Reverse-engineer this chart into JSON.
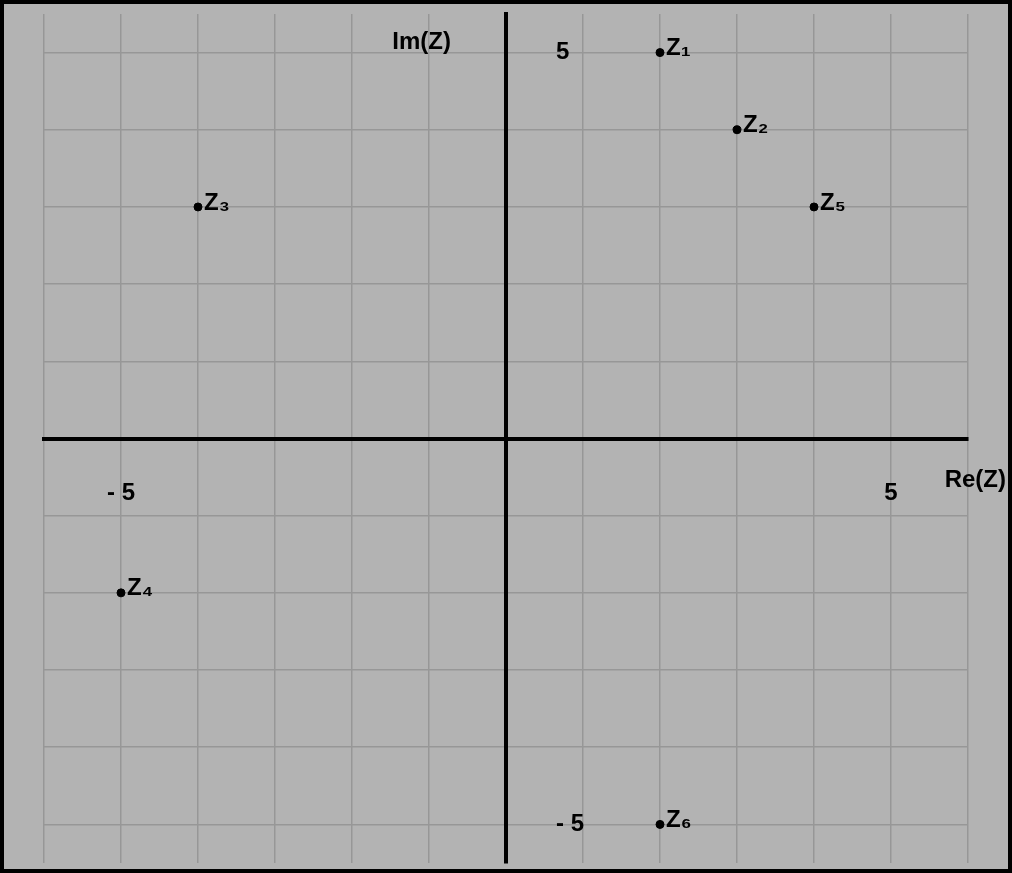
{
  "chart_data": {
    "type": "scatter",
    "xlabel": "Re(Z)",
    "ylabel": "Im(Z)",
    "x": [
      2,
      3,
      -4,
      -5,
      4,
      2
    ],
    "values": [
      5,
      4,
      3,
      -2,
      3,
      -5
    ],
    "color": "#000000",
    "marker": "circle",
    "legend": false,
    "grid": true,
    "xlim": [
      -6,
      6
    ],
    "ylim": [
      -5.5,
      5.5
    ],
    "xticks": [
      {
        "value": -6,
        "label": null
      },
      {
        "value": -5,
        "label": "- 5"
      },
      {
        "value": -4,
        "label": null
      },
      {
        "value": -3,
        "label": null
      },
      {
        "value": -2,
        "label": null
      },
      {
        "value": -1,
        "label": null
      },
      {
        "value": 0,
        "label": null
      },
      {
        "value": 1,
        "label": null
      },
      {
        "value": 2,
        "label": null
      },
      {
        "value": 3,
        "label": null
      },
      {
        "value": 4,
        "label": null
      },
      5,
      {
        "value": 6,
        "label": null
      }
    ],
    "yticks": [
      {
        "value": -5,
        "label": "- 5"
      },
      {
        "value": -4,
        "label": null
      },
      {
        "value": -3,
        "label": null
      },
      {
        "value": -2,
        "label": null
      },
      {
        "value": -1,
        "label": null
      },
      {
        "value": 0,
        "label": null
      },
      {
        "value": 1,
        "label": null
      },
      {
        "value": 2,
        "label": null
      },
      {
        "value": 3,
        "label": null
      },
      {
        "value": 4,
        "label": null
      },
      5
    ],
    "annotations": [
      {
        "text": "Z₁",
        "x": 2,
        "y": 5
      },
      {
        "text": "Z₂",
        "x": 3,
        "y": 4
      },
      {
        "text": "Z₃",
        "x": -4,
        "y": 3
      },
      {
        "text": "Z₄",
        "x": -5,
        "y": -2
      },
      {
        "text": "Z₅",
        "x": 4,
        "y": 3
      },
      {
        "text": "Z₆",
        "x": 2,
        "y": -5
      }
    ]
  }
}
